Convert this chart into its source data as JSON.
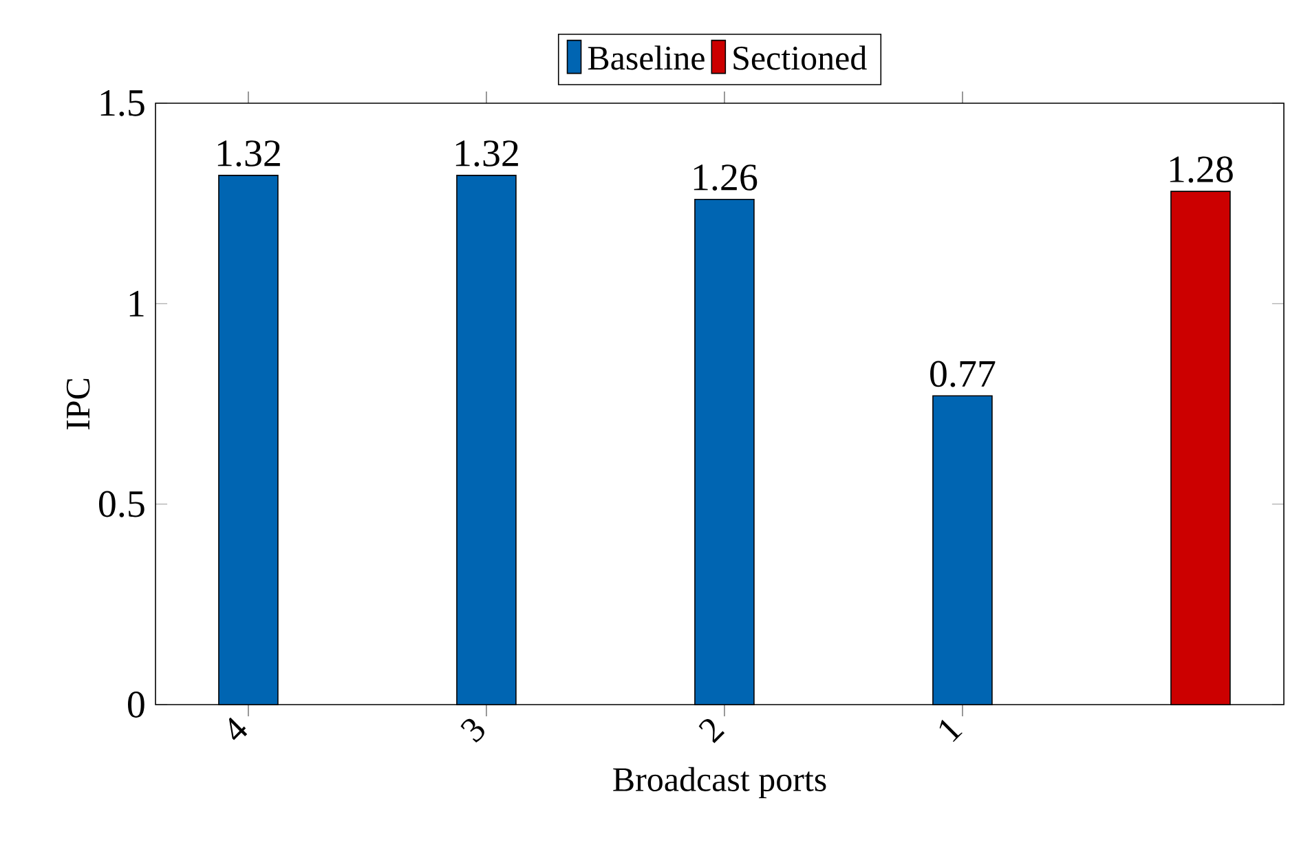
{
  "chart_data": {
    "type": "bar",
    "xlabel": "Broadcast ports",
    "ylabel": "IPC",
    "categories": [
      "4",
      "3",
      "2",
      "1",
      null
    ],
    "series": [
      {
        "name": "Baseline",
        "color": "#0065b2",
        "values": [
          1.32,
          1.32,
          1.26,
          0.77,
          null
        ]
      },
      {
        "name": "Sectioned",
        "color": "#cc0000",
        "values": [
          null,
          null,
          null,
          null,
          1.28
        ]
      }
    ],
    "ylim": [
      0,
      1.5
    ],
    "yticks": [
      0,
      0.5,
      1,
      1.5
    ],
    "data_labels": true,
    "legend": "top",
    "grid": false
  }
}
